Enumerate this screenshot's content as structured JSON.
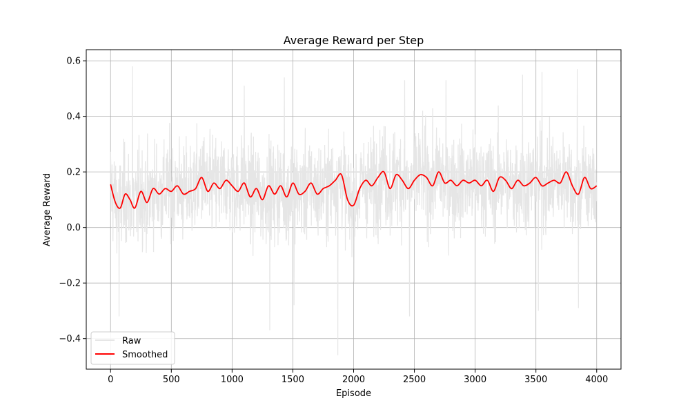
{
  "chart_data": {
    "type": "line",
    "title": "Average Reward per Step",
    "xlabel": "Episode",
    "ylabel": "Average Reward",
    "xlim": [
      -200,
      4200
    ],
    "ylim": [
      -0.51,
      0.64
    ],
    "xticks": [
      0,
      500,
      1000,
      1500,
      2000,
      2500,
      3000,
      3500,
      4000
    ],
    "xtick_labels": [
      "0",
      "500",
      "1000",
      "1500",
      "2000",
      "2500",
      "3000",
      "3500",
      "4000"
    ],
    "yticks": [
      -0.4,
      -0.2,
      0.0,
      0.2,
      0.4,
      0.6
    ],
    "ytick_labels": [
      "−0.4",
      "−0.2",
      "0.0",
      "0.2",
      "0.4",
      "0.6"
    ],
    "grid": true,
    "legend_position": "lower-left",
    "series": [
      {
        "name": "Raw",
        "color": "#e6e6e6",
        "summary": {
          "x_start": 0,
          "x_end": 4000,
          "n_points": 4000,
          "typical_range": [
            -0.15,
            0.45
          ],
          "max": 0.58,
          "min": -0.46
        },
        "peaks": [
          {
            "x": 180,
            "y": 0.58
          },
          {
            "x": 455,
            "y": 0.56
          },
          {
            "x": 1100,
            "y": 0.51
          },
          {
            "x": 1430,
            "y": 0.54
          },
          {
            "x": 2420,
            "y": 0.53
          },
          {
            "x": 2760,
            "y": 0.53
          },
          {
            "x": 3390,
            "y": 0.55
          },
          {
            "x": 3550,
            "y": 0.56
          },
          {
            "x": 3840,
            "y": 0.57
          }
        ],
        "troughs": [
          {
            "x": 70,
            "y": -0.32
          },
          {
            "x": 1310,
            "y": -0.37
          },
          {
            "x": 1510,
            "y": -0.28
          },
          {
            "x": 1870,
            "y": -0.46
          },
          {
            "x": 2460,
            "y": -0.32
          },
          {
            "x": 3520,
            "y": -0.3
          },
          {
            "x": 3850,
            "y": -0.29
          }
        ]
      },
      {
        "name": "Smoothed",
        "color": "#ff0000",
        "x": [
          0,
          40,
          80,
          120,
          160,
          200,
          250,
          300,
          350,
          400,
          450,
          500,
          550,
          600,
          650,
          700,
          750,
          800,
          850,
          900,
          950,
          1000,
          1050,
          1100,
          1150,
          1200,
          1250,
          1300,
          1350,
          1400,
          1450,
          1500,
          1550,
          1600,
          1650,
          1700,
          1750,
          1800,
          1850,
          1900,
          1950,
          2000,
          2050,
          2100,
          2150,
          2200,
          2250,
          2300,
          2350,
          2400,
          2450,
          2500,
          2550,
          2600,
          2650,
          2700,
          2750,
          2800,
          2850,
          2900,
          2950,
          3000,
          3050,
          3100,
          3150,
          3200,
          3250,
          3300,
          3350,
          3400,
          3450,
          3500,
          3550,
          3600,
          3650,
          3700,
          3750,
          3800,
          3850,
          3900,
          3950,
          4000
        ],
        "y": [
          0.155,
          0.09,
          0.07,
          0.12,
          0.1,
          0.07,
          0.13,
          0.09,
          0.14,
          0.12,
          0.14,
          0.13,
          0.15,
          0.12,
          0.13,
          0.14,
          0.18,
          0.13,
          0.16,
          0.14,
          0.17,
          0.15,
          0.13,
          0.16,
          0.11,
          0.14,
          0.1,
          0.15,
          0.12,
          0.15,
          0.11,
          0.16,
          0.12,
          0.13,
          0.16,
          0.12,
          0.14,
          0.15,
          0.17,
          0.19,
          0.1,
          0.08,
          0.14,
          0.17,
          0.15,
          0.18,
          0.2,
          0.14,
          0.19,
          0.17,
          0.14,
          0.17,
          0.19,
          0.18,
          0.15,
          0.2,
          0.16,
          0.17,
          0.15,
          0.17,
          0.16,
          0.17,
          0.15,
          0.17,
          0.13,
          0.18,
          0.17,
          0.14,
          0.17,
          0.15,
          0.16,
          0.18,
          0.15,
          0.16,
          0.17,
          0.16,
          0.2,
          0.15,
          0.12,
          0.18,
          0.14,
          0.15
        ]
      }
    ]
  }
}
